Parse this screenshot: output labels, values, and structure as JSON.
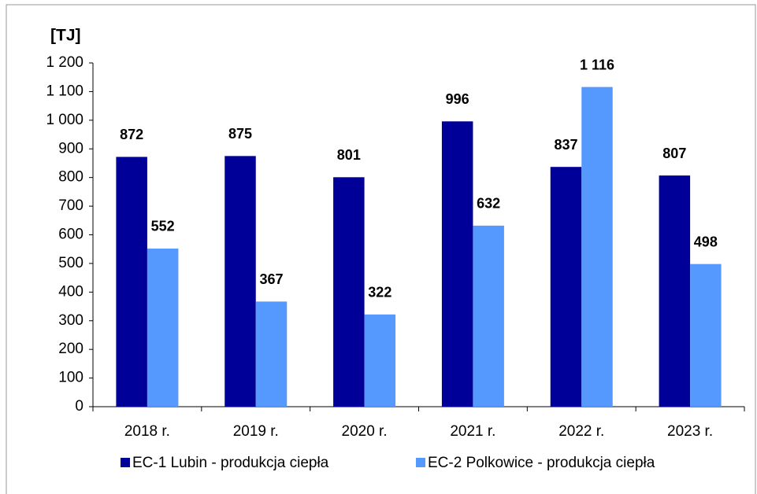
{
  "chart_data": {
    "type": "bar",
    "y_label": "[TJ]",
    "categories": [
      "2018 r.",
      "2019 r.",
      "2020 r.",
      "2021 r.",
      "2022 r.",
      "2023 r."
    ],
    "series": [
      {
        "name": "EC-1 Lubin - produkcja ciepła",
        "color": "#000099",
        "values": [
          872,
          875,
          801,
          996,
          837,
          807
        ]
      },
      {
        "name": "EC-2 Polkowice - produkcja ciepła",
        "color": "#5599ff",
        "values": [
          552,
          367,
          322,
          632,
          1116,
          498
        ],
        "value_labels": [
          "552",
          "367",
          "322",
          "632",
          "1 116",
          "498"
        ]
      }
    ],
    "ylim": [
      0,
      1200
    ],
    "yticks": [
      0,
      100,
      200,
      300,
      400,
      500,
      600,
      700,
      800,
      900,
      {
        "value": 1000,
        "label": "1 000"
      },
      {
        "value": 1100,
        "label": "1 100"
      },
      {
        "value": 1200,
        "label": "1 200"
      }
    ],
    "legend": "bottom"
  }
}
